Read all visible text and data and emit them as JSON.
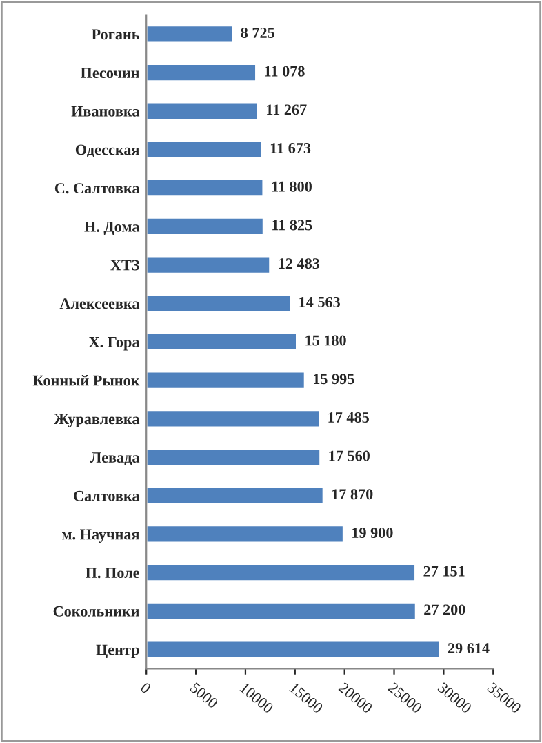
{
  "chart_data": {
    "type": "bar",
    "orientation": "horizontal",
    "categories": [
      "Рогань",
      "Песочин",
      "Ивановка",
      "Одесская",
      "С. Салтовка",
      "Н. Дома",
      "ХТЗ",
      "Алексеевка",
      "Х. Гора",
      "Конный Рынок",
      "Журавлевка",
      "Левада",
      "Салтовка",
      "м. Научная",
      "П. Поле",
      "Сокольники",
      "Центр"
    ],
    "values": [
      8725,
      11078,
      11267,
      11673,
      11800,
      11825,
      12483,
      14563,
      15180,
      15995,
      17485,
      17560,
      17870,
      19900,
      27151,
      27200,
      29614
    ],
    "value_labels": [
      "8 725",
      "11 078",
      "11 267",
      "11 673",
      "11 800",
      "11 825",
      "12 483",
      "14 563",
      "15 180",
      "15 995",
      "17 485",
      "17 560",
      "17 870",
      "19 900",
      "27 151",
      "27 200",
      "29 614"
    ],
    "color": "#4f81bd",
    "xlim": [
      0,
      35000
    ],
    "xticks": [
      0,
      5000,
      10000,
      15000,
      20000,
      25000,
      30000,
      35000
    ],
    "grid": false,
    "legend": false
  }
}
